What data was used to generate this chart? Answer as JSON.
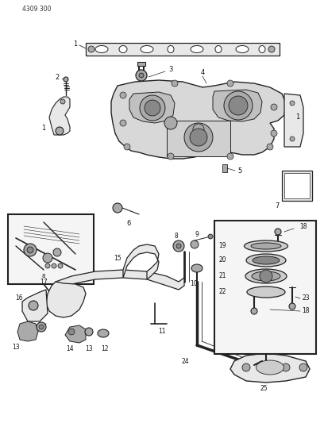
{
  "part_number": "4309 300",
  "bg_color": "#ffffff",
  "fig_width": 4.08,
  "fig_height": 5.33,
  "dpi": 100,
  "lc": "#444444",
  "dc": "#222222",
  "gray1": "#cccccc",
  "gray2": "#aaaaaa",
  "gray3": "#888888",
  "gray4": "#666666",
  "light_gray": "#e8e8e8",
  "white": "#ffffff"
}
